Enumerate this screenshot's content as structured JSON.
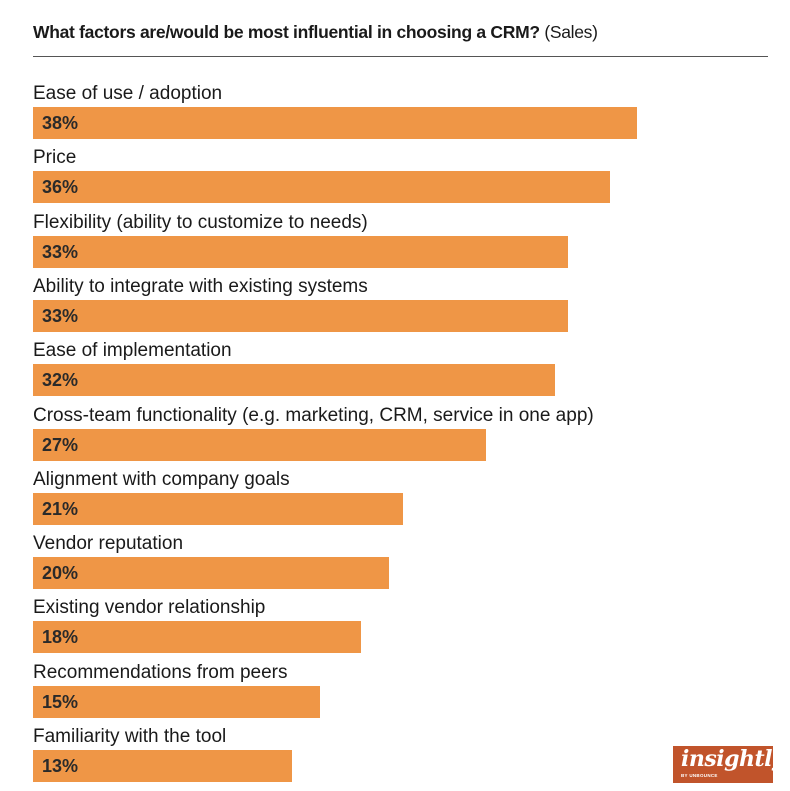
{
  "chart_data": {
    "type": "bar",
    "orientation": "horizontal",
    "title": "What factors are/would be most influential in choosing a CRM?",
    "subtitle": "(Sales)",
    "categories": [
      "Ease of use / adoption",
      "Price",
      "Flexibility (ability to customize to needs)",
      "Ability to integrate with existing systems",
      "Ease of implementation",
      "Cross-team functionality (e.g. marketing, CRM, service in one app)",
      "Alignment with company goals",
      "Vendor reputation",
      "Existing vendor relationship",
      "Recommendations from peers",
      "Familiarity with the tool"
    ],
    "values": [
      38,
      36,
      33,
      33,
      32,
      27,
      21,
      20,
      18,
      15,
      13
    ],
    "value_labels": [
      "38%",
      "36%",
      "33%",
      "33%",
      "32%",
      "27%",
      "21%",
      "20%",
      "18%",
      "15%",
      "13%"
    ],
    "unit": "%",
    "bar_color": "#ef9646",
    "grid": false
  },
  "logo": {
    "wordmark": "insightly",
    "subtext": "BY UNBOUNCE",
    "color": "#c1542b"
  }
}
